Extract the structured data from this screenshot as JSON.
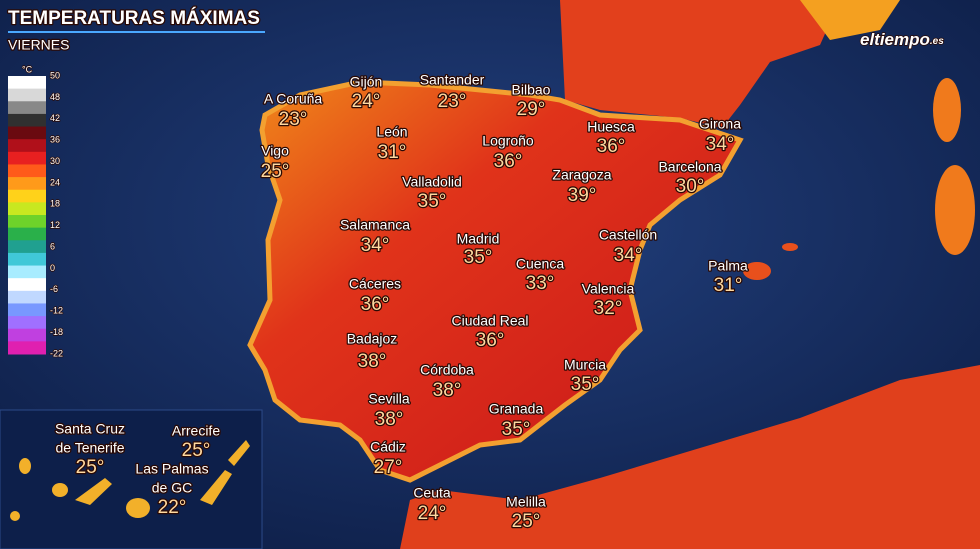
{
  "header": {
    "title": "TEMPERATURAS MÁXIMAS",
    "subtitle": "VIERNES",
    "logo": {
      "main": "eltiempo",
      "suffix": ".es"
    }
  },
  "legend": {
    "unit": "°C",
    "ticks": [
      50,
      48,
      42,
      36,
      30,
      24,
      18,
      12,
      6,
      0,
      -6,
      -12,
      -18,
      -22
    ]
  },
  "cities": [
    {
      "name": "A Coruña",
      "temp": "23°"
    },
    {
      "name": "Gijón",
      "temp": "24°"
    },
    {
      "name": "Santander",
      "temp": "23°"
    },
    {
      "name": "Bilbao",
      "temp": "29°"
    },
    {
      "name": "Vigo",
      "temp": "25°"
    },
    {
      "name": "León",
      "temp": "31°"
    },
    {
      "name": "Logroño",
      "temp": "36°"
    },
    {
      "name": "Huesca",
      "temp": "36°"
    },
    {
      "name": "Girona",
      "temp": "34°"
    },
    {
      "name": "Valladolid",
      "temp": "35°"
    },
    {
      "name": "Zaragoza",
      "temp": "39°"
    },
    {
      "name": "Barcelona",
      "temp": "30°"
    },
    {
      "name": "Salamanca",
      "temp": "34°"
    },
    {
      "name": "Madrid",
      "temp": "35°"
    },
    {
      "name": "Castellón",
      "temp": "34°"
    },
    {
      "name": "Cuenca",
      "temp": "33°"
    },
    {
      "name": "Palma",
      "temp": "31°"
    },
    {
      "name": "Cáceres",
      "temp": "36°"
    },
    {
      "name": "Valencia",
      "temp": "32°"
    },
    {
      "name": "Ciudad Real",
      "temp": "36°"
    },
    {
      "name": "Badajoz",
      "temp": "38°"
    },
    {
      "name": "Murcia",
      "temp": "35°"
    },
    {
      "name": "Córdoba",
      "temp": "38°"
    },
    {
      "name": "Sevilla",
      "temp": "38°"
    },
    {
      "name": "Granada",
      "temp": "35°"
    },
    {
      "name": "Cádiz",
      "temp": "27°"
    },
    {
      "name": "Ceuta",
      "temp": "24°"
    },
    {
      "name": "Melilla",
      "temp": "25°"
    }
  ],
  "canary_islands": [
    {
      "name_lines": [
        "Santa Cruz",
        "de Tenerife"
      ],
      "temp": "25°"
    },
    {
      "name_lines": [
        "Arrecife"
      ],
      "temp": "25°"
    },
    {
      "name_lines": [
        "Las Palmas",
        "de GC"
      ],
      "temp": "22°"
    }
  ]
}
